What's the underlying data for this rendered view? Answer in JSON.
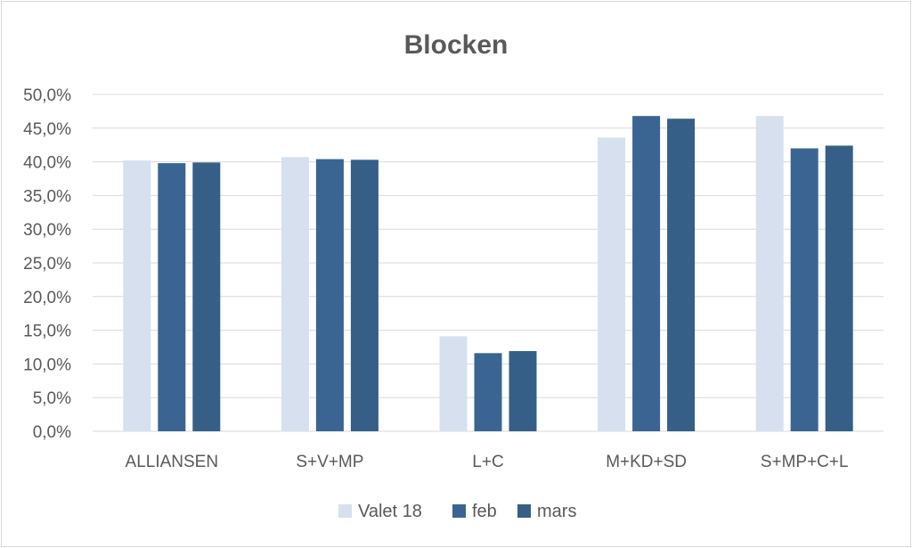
{
  "chart_data": {
    "type": "bar",
    "title": "Blocken",
    "categories": [
      "ALLIANSEN",
      "S+V+MP",
      "L+C",
      "M+KD+SD",
      "S+MP+C+L"
    ],
    "series": [
      {
        "name": "Valet 18",
        "color": "#d6e0ef",
        "values": [
          40.2,
          40.7,
          14.1,
          43.6,
          46.8
        ]
      },
      {
        "name": "feb",
        "color": "#3a6592",
        "values": [
          39.8,
          40.4,
          11.6,
          46.8,
          42.0
        ]
      },
      {
        "name": "mars",
        "color": "#355f87",
        "values": [
          39.9,
          40.3,
          11.9,
          46.4,
          42.4
        ]
      }
    ],
    "ylim": [
      0,
      50
    ],
    "yticks": [
      "0,0%",
      "5,0%",
      "10,0%",
      "15,0%",
      "20,0%",
      "25,0%",
      "30,0%",
      "35,0%",
      "40,0%",
      "45,0%",
      "50,0%"
    ],
    "xlabel": "",
    "ylabel": "",
    "grid": true,
    "legend": "bottom",
    "gridcolor": "#d9d9d9"
  }
}
